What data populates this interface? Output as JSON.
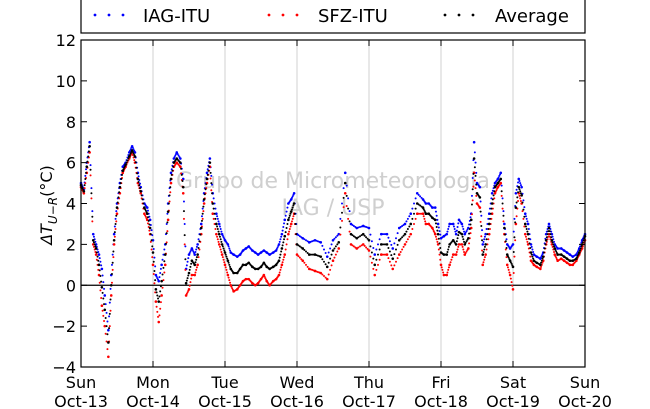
{
  "chart_data": {
    "type": "scatter",
    "ylabel": "ΔT_{U-R} (°C)",
    "ylabel_display": "ΔT",
    "ylabel_subscript": "U−R",
    "ylabel_units": "(°C)",
    "ylim": [
      -4,
      12
    ],
    "yticks": [
      -4,
      -2,
      0,
      2,
      4,
      6,
      8,
      10,
      12
    ],
    "ytick_labels": [
      "−4",
      "−2",
      "0",
      "2",
      "4",
      "6",
      "8",
      "10",
      "12"
    ],
    "xlim": [
      0,
      7
    ],
    "xticks": [
      0,
      1,
      2,
      3,
      4,
      5,
      6,
      7
    ],
    "xtick_days": [
      "Sun",
      "Mon",
      "Tue",
      "Wed",
      "Thu",
      "Fri",
      "Sat",
      "Sun"
    ],
    "xtick_dates": [
      "Oct-13",
      "Oct-14",
      "Oct-15",
      "Oct-16",
      "Oct-17",
      "Oct-18",
      "Oct-19",
      "Oct-20"
    ],
    "grid": "vertical",
    "zero_line": true,
    "legend_position": "top",
    "watermark": [
      "Grupo de Micrometeorologia",
      "IAG / USP"
    ],
    "series": [
      {
        "name": "IAG-ITU",
        "color": "#0000ff",
        "x": [
          0.0,
          0.04,
          0.08,
          0.12,
          0.17,
          0.21,
          0.25,
          0.29,
          0.33,
          0.38,
          0.42,
          0.46,
          0.5,
          0.54,
          0.58,
          0.62,
          0.67,
          0.71,
          0.75,
          0.79,
          0.83,
          0.88,
          0.92,
          0.96,
          1.0,
          1.04,
          1.08,
          1.12,
          1.17,
          1.21,
          1.25,
          1.29,
          1.33,
          1.38,
          1.42,
          1.46,
          1.5,
          1.54,
          1.58,
          1.62,
          1.67,
          1.71,
          1.75,
          1.79,
          1.83,
          1.88,
          1.92,
          1.96,
          2.0,
          2.04,
          2.08,
          2.12,
          2.17,
          2.21,
          2.25,
          2.29,
          2.33,
          2.38,
          2.42,
          2.46,
          2.5,
          2.54,
          2.58,
          2.62,
          2.67,
          2.71,
          2.75,
          2.79,
          2.83,
          2.88,
          2.92,
          2.96,
          3.0,
          3.08,
          3.17,
          3.25,
          3.33,
          3.42,
          3.5,
          3.58,
          3.67,
          3.75,
          3.83,
          3.92,
          4.0,
          4.08,
          4.17,
          4.25,
          4.33,
          4.42,
          4.5,
          4.58,
          4.67,
          4.75,
          4.79,
          4.83,
          4.88,
          4.92,
          4.96,
          5.0,
          5.04,
          5.08,
          5.12,
          5.17,
          5.21,
          5.25,
          5.29,
          5.33,
          5.38,
          5.42,
          5.46,
          5.5,
          5.54,
          5.58,
          5.62,
          5.67,
          5.71,
          5.75,
          5.79,
          5.83,
          5.88,
          5.92,
          5.96,
          6.0,
          6.04,
          6.08,
          6.12,
          6.17,
          6.21,
          6.25,
          6.29,
          6.33,
          6.38,
          6.42,
          6.46,
          6.5,
          6.54,
          6.58,
          6.62,
          6.67,
          6.71,
          6.75,
          6.79,
          6.83,
          6.88,
          6.92,
          6.96,
          7.0
        ],
        "y": [
          5.0,
          4.7,
          6.0,
          7.0,
          2.5,
          2.0,
          1.5,
          0.8,
          -0.5,
          -2.2,
          0.5,
          2.5,
          4.0,
          5.0,
          5.8,
          6.0,
          6.5,
          6.8,
          6.5,
          5.5,
          4.8,
          4.0,
          3.8,
          3.2,
          2.2,
          0.5,
          0.2,
          1.0,
          2.0,
          4.0,
          5.5,
          6.2,
          6.5,
          6.2,
          5.2,
          0.8,
          1.5,
          1.8,
          1.5,
          2.0,
          3.0,
          4.5,
          5.5,
          6.2,
          4.5,
          3.5,
          3.0,
          2.5,
          2.2,
          2.0,
          1.6,
          1.5,
          1.4,
          1.5,
          1.7,
          1.8,
          1.9,
          1.7,
          1.6,
          1.5,
          1.6,
          1.7,
          1.6,
          1.5,
          1.6,
          1.7,
          2.0,
          2.5,
          3.2,
          4.0,
          4.2,
          4.5,
          2.5,
          2.3,
          2.1,
          2.2,
          2.1,
          1.4,
          2.2,
          2.5,
          5.5,
          3.0,
          2.8,
          2.9,
          2.8,
          1.5,
          2.5,
          2.5,
          1.8,
          2.8,
          3.0,
          3.5,
          4.5,
          4.2,
          4.0,
          4.0,
          3.8,
          3.8,
          3.0,
          2.3,
          2.4,
          2.5,
          3.0,
          3.0,
          2.5,
          3.2,
          3.0,
          2.5,
          2.8,
          3.5,
          7.0,
          5.0,
          4.8,
          2.0,
          2.5,
          3.5,
          4.5,
          5.0,
          5.2,
          5.5,
          3.0,
          2.0,
          1.8,
          2.0,
          4.5,
          5.2,
          4.8,
          3.5,
          3.0,
          2.0,
          1.5,
          1.4,
          1.3,
          1.6,
          2.5,
          3.0,
          2.5,
          2.0,
          1.8,
          1.8,
          1.7,
          1.6,
          1.5,
          1.4,
          1.5,
          1.8,
          2.2,
          2.5
        ]
      },
      {
        "name": "SFZ-ITU",
        "color": "#ff0000",
        "x": [
          0.0,
          0.04,
          0.08,
          0.12,
          0.17,
          0.21,
          0.25,
          0.29,
          0.33,
          0.38,
          0.42,
          0.46,
          0.5,
          0.54,
          0.58,
          0.62,
          0.67,
          0.71,
          0.75,
          0.79,
          0.83,
          0.88,
          0.92,
          0.96,
          1.0,
          1.04,
          1.08,
          1.12,
          1.17,
          1.21,
          1.25,
          1.29,
          1.33,
          1.38,
          1.42,
          1.46,
          1.5,
          1.54,
          1.58,
          1.62,
          1.67,
          1.71,
          1.75,
          1.79,
          1.83,
          1.88,
          1.92,
          1.96,
          2.0,
          2.04,
          2.08,
          2.12,
          2.17,
          2.21,
          2.25,
          2.29,
          2.33,
          2.38,
          2.42,
          2.46,
          2.5,
          2.54,
          2.58,
          2.62,
          2.67,
          2.71,
          2.75,
          2.79,
          2.83,
          2.88,
          2.92,
          2.96,
          3.0,
          3.08,
          3.17,
          3.25,
          3.33,
          3.42,
          3.5,
          3.58,
          3.67,
          3.75,
          3.83,
          3.92,
          4.0,
          4.08,
          4.17,
          4.25,
          4.33,
          4.42,
          4.5,
          4.58,
          4.67,
          4.75,
          4.79,
          4.83,
          4.88,
          4.92,
          4.96,
          5.0,
          5.04,
          5.08,
          5.12,
          5.17,
          5.21,
          5.25,
          5.29,
          5.33,
          5.38,
          5.42,
          5.46,
          5.5,
          5.54,
          5.58,
          5.62,
          5.67,
          5.71,
          5.75,
          5.79,
          5.83,
          5.88,
          5.92,
          5.96,
          6.0,
          6.04,
          6.08,
          6.12,
          6.17,
          6.21,
          6.25,
          6.29,
          6.33,
          6.38,
          6.42,
          6.46,
          6.5,
          6.54,
          6.58,
          6.62,
          6.67,
          6.71,
          6.75,
          6.79,
          6.83,
          6.88,
          6.92,
          6.96,
          7.0
        ],
        "y": [
          4.8,
          4.5,
          5.5,
          6.5,
          2.0,
          1.5,
          0.5,
          -1.0,
          -2.0,
          -3.5,
          -0.5,
          2.0,
          3.5,
          4.5,
          5.5,
          5.8,
          6.2,
          6.5,
          6.0,
          5.0,
          4.5,
          3.5,
          3.2,
          2.5,
          1.0,
          -0.8,
          -1.8,
          -0.5,
          1.0,
          3.2,
          5.0,
          5.8,
          6.0,
          5.8,
          4.5,
          -0.5,
          -0.2,
          0.5,
          0.5,
          1.0,
          2.5,
          4.0,
          5.0,
          5.8,
          3.5,
          2.5,
          2.0,
          1.5,
          1.0,
          0.5,
          0.0,
          -0.3,
          -0.2,
          0.0,
          0.2,
          0.3,
          0.3,
          0.1,
          0.0,
          0.1,
          0.3,
          0.5,
          0.2,
          0.0,
          0.2,
          0.3,
          0.5,
          1.0,
          1.5,
          2.5,
          3.0,
          3.5,
          1.5,
          1.2,
          0.8,
          0.7,
          0.6,
          0.3,
          1.2,
          1.8,
          4.5,
          2.0,
          1.8,
          2.0,
          1.7,
          0.5,
          1.5,
          1.5,
          0.8,
          1.5,
          2.0,
          2.5,
          3.5,
          3.5,
          3.0,
          3.0,
          2.8,
          2.5,
          2.0,
          1.0,
          0.5,
          0.5,
          1.0,
          1.5,
          1.5,
          2.0,
          2.0,
          1.5,
          1.8,
          2.8,
          5.5,
          4.0,
          3.8,
          1.0,
          1.5,
          2.5,
          3.5,
          4.5,
          4.8,
          5.0,
          2.5,
          1.0,
          0.5,
          -0.2,
          3.0,
          4.5,
          4.0,
          2.5,
          2.0,
          1.2,
          1.0,
          0.9,
          0.8,
          1.2,
          2.0,
          2.5,
          2.0,
          1.5,
          1.2,
          1.3,
          1.2,
          1.1,
          1.0,
          1.0,
          1.2,
          1.5,
          1.8,
          2.2
        ]
      },
      {
        "name": "Average",
        "color": "#000000",
        "x": [
          0.0,
          0.04,
          0.08,
          0.12,
          0.17,
          0.21,
          0.25,
          0.29,
          0.33,
          0.38,
          0.42,
          0.46,
          0.5,
          0.54,
          0.58,
          0.62,
          0.67,
          0.71,
          0.75,
          0.79,
          0.83,
          0.88,
          0.92,
          0.96,
          1.0,
          1.04,
          1.08,
          1.12,
          1.17,
          1.21,
          1.25,
          1.29,
          1.33,
          1.38,
          1.42,
          1.46,
          1.5,
          1.54,
          1.58,
          1.62,
          1.67,
          1.71,
          1.75,
          1.79,
          1.83,
          1.88,
          1.92,
          1.96,
          2.0,
          2.04,
          2.08,
          2.12,
          2.17,
          2.21,
          2.25,
          2.29,
          2.33,
          2.38,
          2.42,
          2.46,
          2.5,
          2.54,
          2.58,
          2.62,
          2.67,
          2.71,
          2.75,
          2.79,
          2.83,
          2.88,
          2.92,
          2.96,
          3.0,
          3.08,
          3.17,
          3.25,
          3.33,
          3.42,
          3.5,
          3.58,
          3.67,
          3.75,
          3.83,
          3.92,
          4.0,
          4.08,
          4.17,
          4.25,
          4.33,
          4.42,
          4.5,
          4.58,
          4.67,
          4.75,
          4.79,
          4.83,
          4.88,
          4.92,
          4.96,
          5.0,
          5.04,
          5.08,
          5.12,
          5.17,
          5.21,
          5.25,
          5.29,
          5.33,
          5.38,
          5.42,
          5.46,
          5.5,
          5.54,
          5.58,
          5.62,
          5.67,
          5.71,
          5.75,
          5.79,
          5.83,
          5.88,
          5.92,
          5.96,
          6.0,
          6.04,
          6.08,
          6.12,
          6.17,
          6.21,
          6.25,
          6.29,
          6.33,
          6.38,
          6.42,
          6.46,
          6.5,
          6.54,
          6.58,
          6.62,
          6.67,
          6.71,
          6.75,
          6.79,
          6.83,
          6.88,
          6.92,
          6.96,
          7.0
        ],
        "y": [
          4.9,
          4.6,
          5.8,
          6.8,
          2.2,
          1.8,
          1.0,
          -0.1,
          -1.2,
          -2.8,
          0.0,
          2.2,
          3.8,
          4.8,
          5.6,
          5.9,
          6.3,
          6.6,
          6.3,
          5.2,
          4.6,
          3.8,
          3.5,
          2.8,
          1.6,
          -0.2,
          -0.8,
          0.2,
          1.5,
          3.6,
          5.2,
          6.0,
          6.2,
          6.0,
          4.8,
          0.1,
          0.6,
          1.2,
          1.0,
          1.5,
          2.8,
          4.2,
          5.2,
          6.0,
          4.0,
          3.0,
          2.5,
          2.0,
          1.6,
          1.2,
          0.8,
          0.6,
          0.6,
          0.8,
          1.0,
          1.0,
          1.1,
          0.9,
          0.8,
          0.8,
          0.9,
          1.1,
          0.9,
          0.8,
          0.9,
          1.0,
          1.2,
          1.8,
          2.4,
          3.2,
          3.6,
          4.0,
          2.0,
          1.8,
          1.5,
          1.5,
          1.4,
          0.9,
          1.7,
          2.1,
          5.0,
          2.5,
          2.3,
          2.5,
          2.2,
          1.0,
          2.0,
          2.0,
          1.3,
          2.2,
          2.5,
          3.0,
          4.0,
          3.8,
          3.5,
          3.5,
          3.3,
          3.2,
          2.5,
          1.6,
          1.5,
          1.5,
          2.0,
          2.2,
          2.0,
          2.6,
          2.5,
          2.0,
          2.3,
          3.2,
          6.2,
          4.5,
          4.3,
          1.5,
          2.0,
          3.0,
          4.0,
          4.8,
          5.0,
          5.2,
          2.8,
          1.5,
          1.2,
          0.9,
          3.8,
          4.8,
          4.4,
          3.0,
          2.5,
          1.6,
          1.2,
          1.1,
          1.0,
          1.4,
          2.2,
          2.8,
          2.2,
          1.8,
          1.5,
          1.5,
          1.4,
          1.3,
          1.2,
          1.2,
          1.3,
          1.6,
          2.0,
          2.4
        ]
      }
    ]
  }
}
